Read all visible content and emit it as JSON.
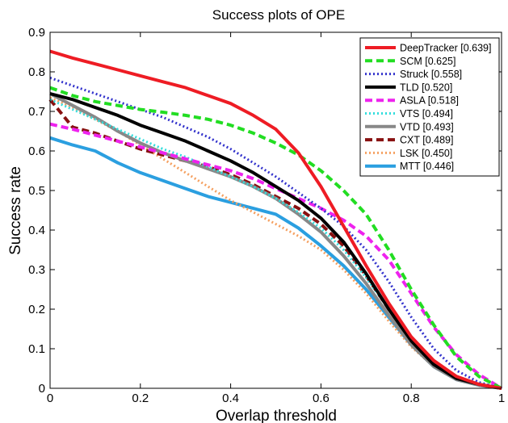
{
  "chart_data": {
    "type": "line",
    "title": "Success plots of OPE",
    "xlabel": "Overlap threshold",
    "ylabel": "Success rate",
    "xlim": [
      0,
      1
    ],
    "ylim": [
      0,
      0.9
    ],
    "xticks": [
      "0",
      "0.2",
      "0.4",
      "0.6",
      "0.8",
      "1"
    ],
    "yticks": [
      "0",
      "0.1",
      "0.2",
      "0.3",
      "0.4",
      "0.5",
      "0.6",
      "0.7",
      "0.8",
      "0.9"
    ],
    "grid": false,
    "legend_position": "top-right",
    "x": [
      0,
      0.05,
      0.1,
      0.15,
      0.2,
      0.25,
      0.3,
      0.35,
      0.4,
      0.45,
      0.5,
      0.55,
      0.6,
      0.65,
      0.7,
      0.75,
      0.8,
      0.85,
      0.9,
      0.95,
      1.0
    ],
    "series": [
      {
        "name": "DeepTracker [0.639]",
        "color": "#ee1c24",
        "style": "solid",
        "width": 4,
        "values": [
          0.852,
          0.835,
          0.82,
          0.805,
          0.79,
          0.775,
          0.76,
          0.74,
          0.72,
          0.69,
          0.655,
          0.595,
          0.51,
          0.41,
          0.31,
          0.215,
          0.13,
          0.07,
          0.03,
          0.01,
          0.0
        ]
      },
      {
        "name": "SCM [0.625]",
        "color": "#22dd22",
        "style": "dash",
        "width": 4,
        "values": [
          0.76,
          0.74,
          0.725,
          0.715,
          0.705,
          0.698,
          0.69,
          0.68,
          0.665,
          0.645,
          0.62,
          0.59,
          0.55,
          0.5,
          0.44,
          0.35,
          0.25,
          0.16,
          0.08,
          0.03,
          0.0
        ]
      },
      {
        "name": "Struck [0.558]",
        "color": "#3333cc",
        "style": "dot",
        "width": 3,
        "values": [
          0.785,
          0.765,
          0.745,
          0.725,
          0.705,
          0.685,
          0.66,
          0.635,
          0.605,
          0.57,
          0.535,
          0.495,
          0.455,
          0.41,
          0.35,
          0.27,
          0.18,
          0.1,
          0.045,
          0.015,
          0.0
        ]
      },
      {
        "name": "TLD [0.520]",
        "color": "#000000",
        "style": "solid",
        "width": 4,
        "values": [
          0.745,
          0.73,
          0.71,
          0.69,
          0.665,
          0.645,
          0.625,
          0.6,
          0.575,
          0.545,
          0.51,
          0.475,
          0.43,
          0.37,
          0.29,
          0.2,
          0.12,
          0.06,
          0.025,
          0.01,
          0.0
        ]
      },
      {
        "name": "ASLA [0.518]",
        "color": "#ee22ee",
        "style": "dash",
        "width": 4,
        "values": [
          0.668,
          0.655,
          0.64,
          0.625,
          0.61,
          0.595,
          0.58,
          0.565,
          0.55,
          0.53,
          0.505,
          0.48,
          0.455,
          0.425,
          0.385,
          0.325,
          0.24,
          0.155,
          0.085,
          0.035,
          0.0
        ]
      },
      {
        "name": "VTS [0.494]",
        "color": "#33dddd",
        "style": "dot",
        "width": 3,
        "values": [
          0.73,
          0.705,
          0.68,
          0.655,
          0.63,
          0.605,
          0.585,
          0.56,
          0.535,
          0.51,
          0.48,
          0.445,
          0.405,
          0.35,
          0.28,
          0.2,
          0.12,
          0.06,
          0.025,
          0.01,
          0.0
        ]
      },
      {
        "name": "VTD [0.493]",
        "color": "#888888",
        "style": "solid",
        "width": 4,
        "values": [
          0.745,
          0.715,
          0.685,
          0.65,
          0.62,
          0.595,
          0.575,
          0.555,
          0.535,
          0.51,
          0.48,
          0.44,
          0.395,
          0.335,
          0.265,
          0.185,
          0.11,
          0.055,
          0.022,
          0.008,
          0.0
        ]
      },
      {
        "name": "CXT [0.489]",
        "color": "#881111",
        "style": "dash",
        "width": 4,
        "values": [
          0.73,
          0.66,
          0.645,
          0.625,
          0.605,
          0.59,
          0.575,
          0.56,
          0.54,
          0.515,
          0.485,
          0.455,
          0.415,
          0.36,
          0.285,
          0.2,
          0.12,
          0.06,
          0.025,
          0.01,
          0.0
        ]
      },
      {
        "name": "LSK [0.450]",
        "color": "#f5a060",
        "style": "dot",
        "width": 3,
        "values": [
          0.735,
          0.71,
          0.68,
          0.65,
          0.615,
          0.58,
          0.545,
          0.51,
          0.475,
          0.445,
          0.415,
          0.385,
          0.35,
          0.3,
          0.24,
          0.17,
          0.105,
          0.055,
          0.022,
          0.008,
          0.0
        ]
      },
      {
        "name": "MTT [0.446]",
        "color": "#2b9fe0",
        "style": "solid",
        "width": 4,
        "values": [
          0.633,
          0.615,
          0.6,
          0.57,
          0.545,
          0.525,
          0.505,
          0.485,
          0.47,
          0.455,
          0.44,
          0.405,
          0.36,
          0.31,
          0.25,
          0.18,
          0.11,
          0.055,
          0.022,
          0.008,
          0.0
        ]
      }
    ]
  }
}
